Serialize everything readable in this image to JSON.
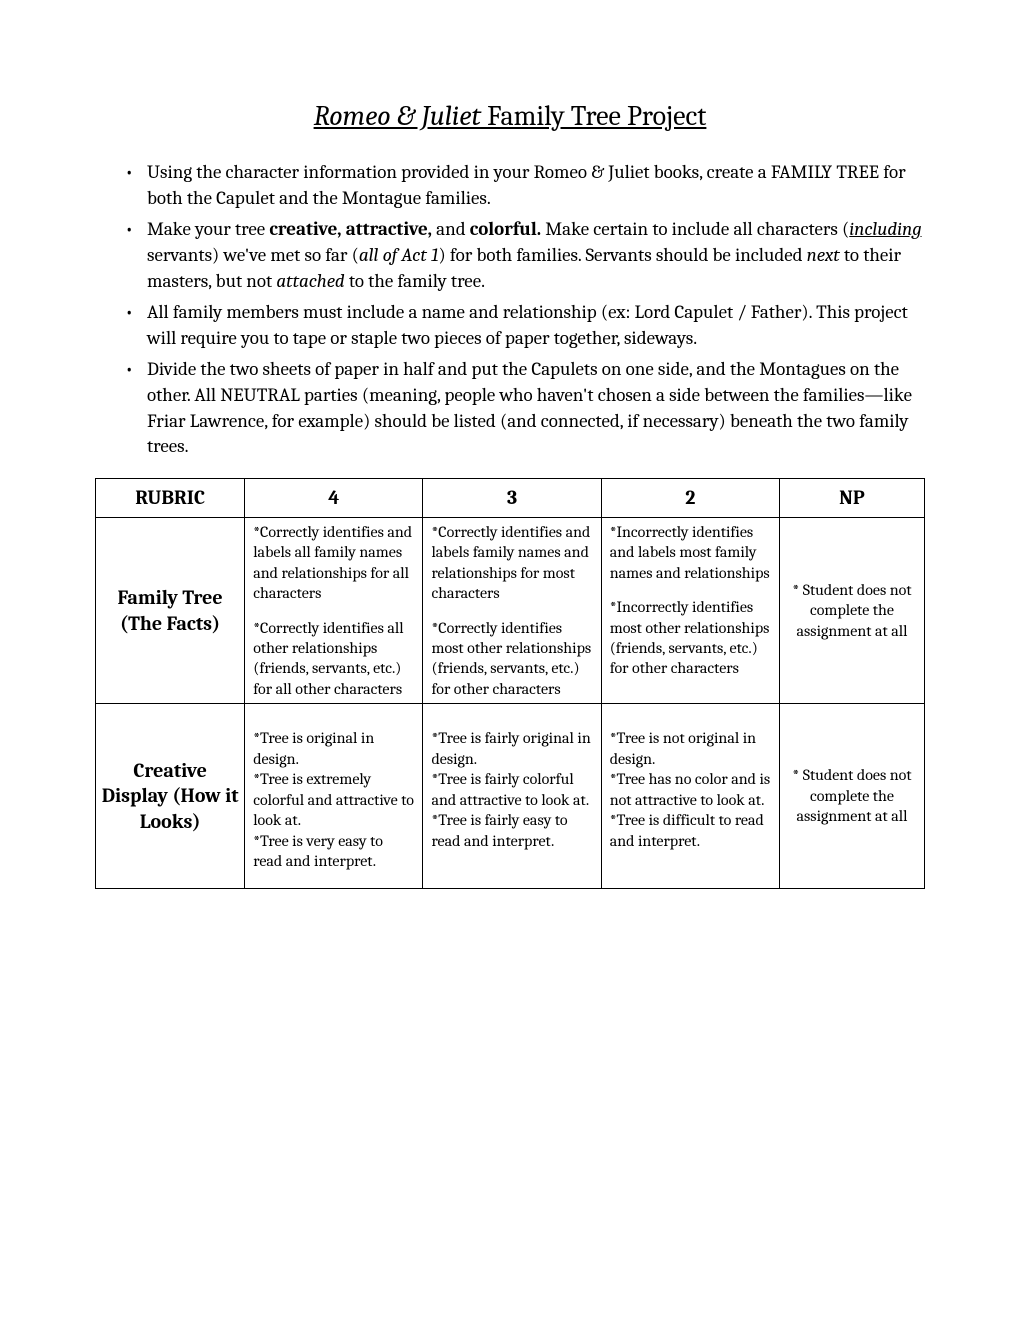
{
  "title_part1": "Romeo & Juliet",
  "title_part2": " Family Tree Project",
  "instructions": [
    {
      "html": "Using the character information provided in your Romeo & Juliet books, create a FAMILY TREE for both the Capulet and the Montague families."
    },
    {
      "html": "Make your tree <span class=\"b\">creative, attractive,</span> and <span class=\"b\">colorful.</span> Make certain to include all characters (<span class=\"iu\">including</span> servants) we've met so far (<span class=\"i\">all of Act 1</span>) for both families. Servants should be included <span class=\"i\">next</span> to their masters, but not <span class=\"i\">attached</span> to the family tree."
    },
    {
      "html": "All family members must include a name and relationship (ex: Lord Capulet / Father). This project will require you to tape or staple two pieces of paper together, sideways."
    },
    {
      "html": "Divide the two sheets of paper in half and put the Capulets on one side, and the Montagues on the other. All NEUTRAL parties (meaning, people who haven't chosen a side between the families—like Friar Lawrence, for example) should be listed (and connected, if necessary) beneath the two family trees."
    }
  ],
  "rubric": {
    "headers": [
      "RUBRIC",
      "4",
      "3",
      "2",
      "NP"
    ],
    "rows": [
      {
        "label": "Family Tree (The Facts)",
        "c4": [
          "*Correctly identifies and labels all family names and relationships for all characters",
          "*Correctly identifies all other relationships (friends, servants, etc.) for all other characters"
        ],
        "c3": [
          "*Correctly identifies and labels family names and relationships for most characters",
          "*Correctly identifies most other relationships (friends, servants, etc.) for other characters"
        ],
        "c2": [
          "*Incorrectly identifies and labels most family names and relationships",
          "*Incorrectly identifies most other relationships (friends, servants, etc.) for other characters"
        ],
        "np": "* Student does not complete the assignment at all"
      },
      {
        "label": "Creative Display (How it Looks)",
        "c4": [
          "*Tree is original in design.",
          "*Tree is extremely colorful and attractive to look at.",
          "*Tree is very easy to read and interpret."
        ],
        "c3": [
          "*Tree is fairly original in design.",
          "*Tree is fairly colorful and attractive to look at.",
          "*Tree is fairly easy to read and interpret."
        ],
        "c2": [
          "*Tree is not original in design.",
          "*Tree has no color and is not attractive to look at.",
          "*Tree is difficult to read and interpret."
        ],
        "np": "* Student does not complete the assignment at all"
      }
    ]
  }
}
